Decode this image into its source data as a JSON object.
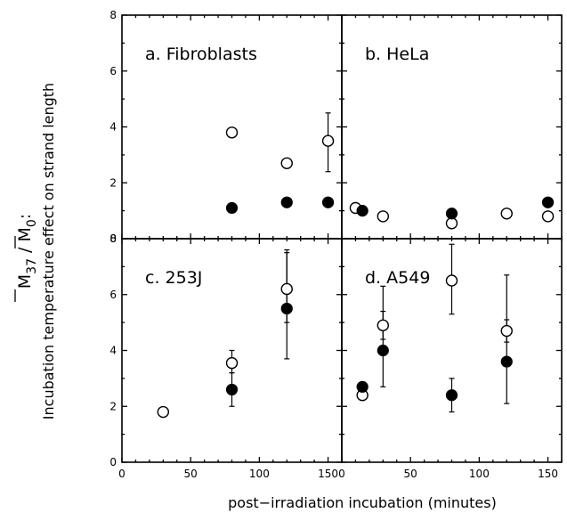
{
  "chart_data": {
    "type": "scatter",
    "xlabel": "post−irradiation incubation (minutes)",
    "ylabel": "Incubation temperature effect on strand length",
    "ylabel_top": ":",
    "ratio": {
      "num_base": "M",
      "num_sub": "37",
      "den_base": "M",
      "den_sub": "0"
    },
    "xlim": [
      0,
      160
    ],
    "ylim": [
      0,
      8
    ],
    "x_ticks": [
      "0",
      "50",
      "100",
      "150"
    ],
    "y_ticks": [
      "0",
      "2",
      "4",
      "6",
      "8"
    ],
    "panels": [
      {
        "title": "a. Fibroblasts",
        "series": [
          {
            "marker": "open",
            "points": [
              {
                "x": 80,
                "y": 3.8
              },
              {
                "x": 120,
                "y": 2.7
              },
              {
                "x": 150,
                "y": 3.5,
                "err_low": 2.4,
                "err_high": 4.5
              }
            ]
          },
          {
            "marker": "filled",
            "points": [
              {
                "x": 80,
                "y": 1.1
              },
              {
                "x": 120,
                "y": 1.3
              },
              {
                "x": 150,
                "y": 1.3
              }
            ]
          }
        ]
      },
      {
        "title": "b.  HeLa",
        "series": [
          {
            "marker": "open",
            "points": [
              {
                "x": 10,
                "y": 1.1
              },
              {
                "x": 30,
                "y": 0.8
              },
              {
                "x": 80,
                "y": 0.55
              },
              {
                "x": 120,
                "y": 0.9
              },
              {
                "x": 150,
                "y": 0.8
              }
            ]
          },
          {
            "marker": "filled",
            "points": [
              {
                "x": 15,
                "y": 1.0
              },
              {
                "x": 80,
                "y": 0.9
              },
              {
                "x": 150,
                "y": 1.3
              }
            ]
          }
        ]
      },
      {
        "title": "c.  253J",
        "series": [
          {
            "marker": "open",
            "points": [
              {
                "x": 30,
                "y": 1.8
              },
              {
                "x": 80,
                "y": 3.55,
                "err_low": 3.2,
                "err_high": 4.0
              },
              {
                "x": 120,
                "y": 6.2,
                "err_low": 5.0,
                "err_high": 7.6
              }
            ]
          },
          {
            "marker": "filled",
            "points": [
              {
                "x": 80,
                "y": 2.6,
                "err_low": 2.0,
                "err_high": 3.2
              },
              {
                "x": 120,
                "y": 5.5,
                "err_low": 3.7,
                "err_high": 7.5
              }
            ]
          }
        ]
      },
      {
        "title": "d. A549",
        "series": [
          {
            "marker": "open",
            "points": [
              {
                "x": 15,
                "y": 2.4
              },
              {
                "x": 30,
                "y": 4.9,
                "err_low": 4.4,
                "err_high": 5.4
              },
              {
                "x": 80,
                "y": 6.5,
                "err_low": 5.3,
                "err_high": 7.8
              },
              {
                "x": 120,
                "y": 4.7,
                "err_low": 4.3,
                "err_high": 5.1
              }
            ]
          },
          {
            "marker": "filled",
            "points": [
              {
                "x": 15,
                "y": 2.7
              },
              {
                "x": 30,
                "y": 4.0,
                "err_low": 2.7,
                "err_high": 6.3
              },
              {
                "x": 80,
                "y": 2.4,
                "err_low": 1.8,
                "err_high": 3.0
              },
              {
                "x": 120,
                "y": 3.6,
                "err_low": 2.1,
                "err_high": 6.7
              }
            ]
          }
        ]
      }
    ]
  }
}
